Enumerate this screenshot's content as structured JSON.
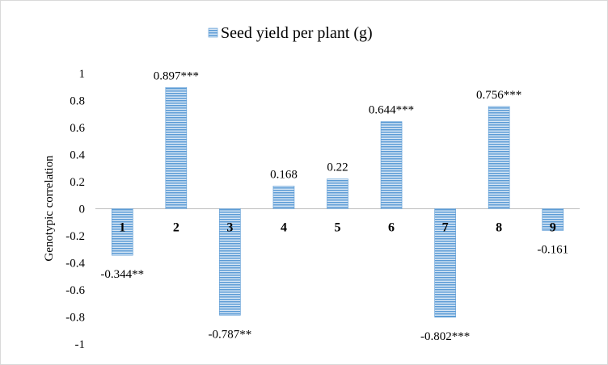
{
  "chart_data": {
    "type": "bar",
    "title": "",
    "xlabel": "",
    "ylabel": "Genotypic correlation",
    "ylim": [
      -1,
      1
    ],
    "yticks": [
      1,
      0.8,
      0.6,
      0.4,
      0.2,
      0,
      -0.2,
      -0.4,
      -0.6,
      -0.8,
      -1
    ],
    "ytick_labels": [
      "1",
      "0.8",
      "0.6",
      "0.4",
      "0.2",
      "0",
      "-0.2",
      "-0.4",
      "-0.6",
      "-0.8",
      "-1"
    ],
    "categories": [
      "1",
      "2",
      "3",
      "4",
      "5",
      "6",
      "7",
      "8",
      "9"
    ],
    "series": [
      {
        "name": "Seed yield per plant (g)",
        "values": [
          -0.344,
          0.897,
          -0.787,
          0.168,
          0.22,
          0.644,
          -0.802,
          0.756,
          -0.161
        ],
        "data_labels": [
          "-0.344**",
          "0.897***",
          "-0.787**",
          "0.168",
          "0.22",
          "0.644***",
          "-0.802***",
          "0.756***",
          "-0.161"
        ]
      }
    ],
    "legend_position": "top-center",
    "grid": false,
    "colors": {
      "bar_fill": "#5b9bd5",
      "bar_stripe": "#d6e6f5",
      "axis": "#bfbfbf"
    }
  }
}
